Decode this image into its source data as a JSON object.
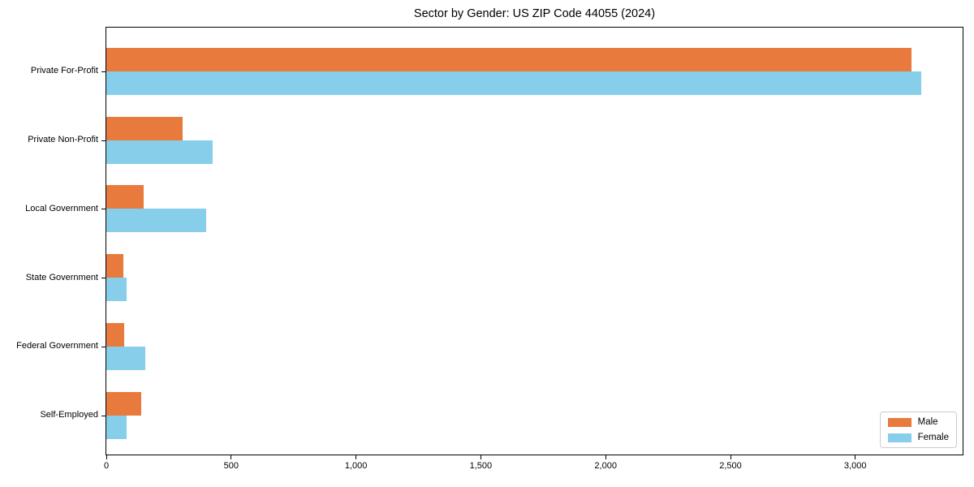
{
  "chart_data": {
    "type": "bar",
    "orientation": "horizontal",
    "title": "Sector by Gender: US ZIP Code 44055 (2024)",
    "categories": [
      "Private For-Profit",
      "Private Non-Profit",
      "Local Government",
      "State Government",
      "Federal Government",
      "Self-Employed"
    ],
    "series": [
      {
        "name": "Male",
        "color": "#E77A3C",
        "values": [
          3225,
          305,
          150,
          68,
          70,
          140
        ]
      },
      {
        "name": "Female",
        "color": "#87CEEB",
        "values": [
          3265,
          425,
          400,
          81,
          155,
          82
        ]
      }
    ],
    "xlim": [
      0,
      3430
    ],
    "xticks": [
      0,
      500,
      1000,
      1500,
      2000,
      2500,
      3000
    ],
    "xtick_labels": [
      "0",
      "500",
      "1,000",
      "1,500",
      "2,000",
      "2,500",
      "3,000"
    ],
    "ylabel": "",
    "xlabel": "",
    "grid": false,
    "legend_position": "lower right",
    "plot_border_color": "#000000",
    "background_color": "#ffffff"
  }
}
